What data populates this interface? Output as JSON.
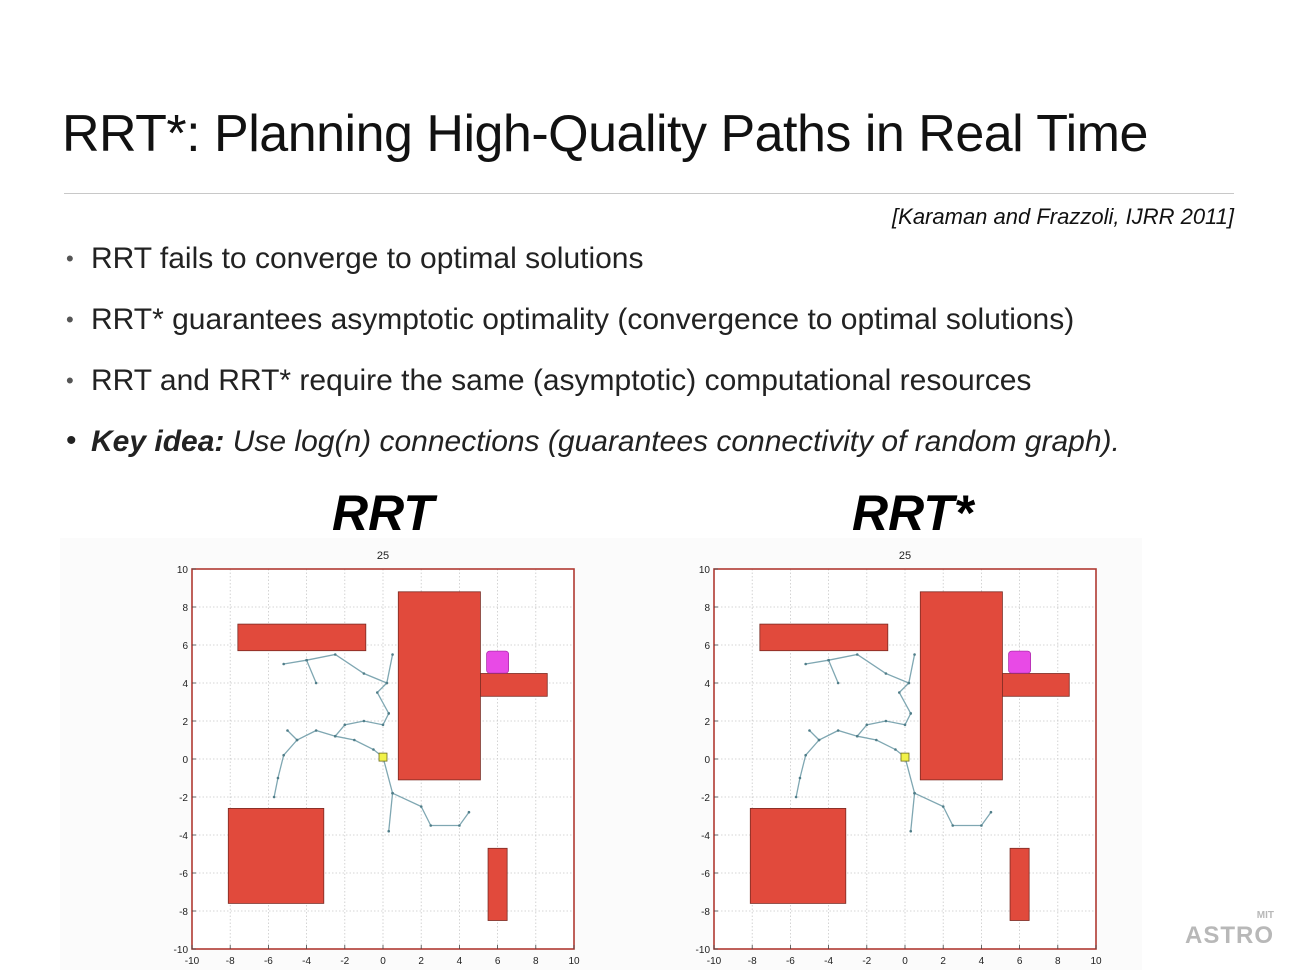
{
  "title": "RRT*: Planning High-Quality Paths in Real Time",
  "citation": "[Karaman and Frazzoli, IJRR 2011]",
  "bullets": [
    {
      "text": "RRT fails to converge to optimal solutions"
    },
    {
      "text": "RRT* guarantees asymptotic optimality (convergence to optimal solutions)"
    },
    {
      "text": "RRT and RRT* require the same (asymptotic) computational resources"
    },
    {
      "label": "Key idea:",
      "text": "Use log(n) connections (guarantees connectivity of random graph)."
    }
  ],
  "bullet_marker": "•",
  "plots": {
    "left_heading": "RRT",
    "right_heading": "RRT*"
  },
  "logo": {
    "small": "MIT",
    "big": "ASTRO"
  },
  "chart_data": [
    {
      "type": "scatter",
      "title": "25",
      "xlabel": "",
      "ylabel": "",
      "xlim": [
        -10,
        10
      ],
      "ylim": [
        -10,
        10
      ],
      "xticks": [
        -10,
        -8,
        -6,
        -4,
        -2,
        0,
        2,
        4,
        6,
        8,
        10
      ],
      "yticks": [
        -10,
        -8,
        -6,
        -4,
        -2,
        0,
        2,
        4,
        6,
        8,
        10
      ],
      "grid": true,
      "colors": {
        "obstacle": "#e14a3c",
        "goal": "#e84ae6",
        "start": "#f2f249",
        "tree": "#7fa7b2",
        "axes": "#b03a32"
      },
      "obstacles": [
        {
          "x0": -7.6,
          "x1": -0.9,
          "y0": 5.7,
          "y1": 7.1
        },
        {
          "x0": 0.8,
          "x1": 5.1,
          "y0": -1.1,
          "y1": 8.8
        },
        {
          "x0": 5.1,
          "x1": 8.6,
          "y0": 3.3,
          "y1": 4.5
        },
        {
          "x0": -8.1,
          "x1": -3.1,
          "y0": -7.6,
          "y1": -2.6
        },
        {
          "x0": 5.5,
          "x1": 6.5,
          "y0": -8.5,
          "y1": -4.7
        }
      ],
      "goal": {
        "x": 6.0,
        "y": 5.1
      },
      "start": {
        "x": 0.0,
        "y": 0.1
      },
      "tree_paths": [
        [
          [
            0.0,
            0.1
          ],
          [
            -0.5,
            0.5
          ],
          [
            -1.5,
            1.0
          ],
          [
            -2.5,
            1.2
          ],
          [
            -3.5,
            1.5
          ],
          [
            -4.5,
            1.0
          ],
          [
            -5.2,
            0.2
          ],
          [
            -5.5,
            -1.0
          ],
          [
            -5.7,
            -2.0
          ]
        ],
        [
          [
            -4.5,
            1.0
          ],
          [
            -5.0,
            1.5
          ]
        ],
        [
          [
            -2.5,
            1.2
          ],
          [
            -2.0,
            1.8
          ],
          [
            -1.0,
            2.0
          ],
          [
            0.0,
            1.8
          ],
          [
            0.3,
            2.4
          ]
        ],
        [
          [
            0.3,
            2.4
          ],
          [
            -0.3,
            3.5
          ],
          [
            0.2,
            4.0
          ],
          [
            0.5,
            5.5
          ]
        ],
        [
          [
            0.2,
            4.0
          ],
          [
            -1.0,
            4.5
          ],
          [
            -2.5,
            5.5
          ],
          [
            -4.0,
            5.2
          ],
          [
            -5.2,
            5.0
          ]
        ],
        [
          [
            -4.0,
            5.2
          ],
          [
            -3.5,
            4.0
          ]
        ],
        [
          [
            0.0,
            0.1
          ],
          [
            0.5,
            -1.8
          ],
          [
            2.0,
            -2.5
          ],
          [
            2.5,
            -3.5
          ],
          [
            4.0,
            -3.5
          ],
          [
            4.5,
            -2.8
          ]
        ],
        [
          [
            0.5,
            -1.8
          ],
          [
            0.3,
            -3.8
          ]
        ]
      ]
    },
    {
      "type": "scatter",
      "title": "25",
      "xlabel": "",
      "ylabel": "",
      "xlim": [
        -10,
        10
      ],
      "ylim": [
        -10,
        10
      ],
      "xticks": [
        -10,
        -8,
        -6,
        -4,
        -2,
        0,
        2,
        4,
        6,
        8,
        10
      ],
      "yticks": [
        -10,
        -8,
        -6,
        -4,
        -2,
        0,
        2,
        4,
        6,
        8,
        10
      ],
      "grid": true,
      "colors": {
        "obstacle": "#e14a3c",
        "goal": "#e84ae6",
        "start": "#f2f249",
        "tree": "#7fa7b2",
        "axes": "#b03a32"
      },
      "obstacles": [
        {
          "x0": -7.6,
          "x1": -0.9,
          "y0": 5.7,
          "y1": 7.1
        },
        {
          "x0": 0.8,
          "x1": 5.1,
          "y0": -1.1,
          "y1": 8.8
        },
        {
          "x0": 5.1,
          "x1": 8.6,
          "y0": 3.3,
          "y1": 4.5
        },
        {
          "x0": -8.1,
          "x1": -3.1,
          "y0": -7.6,
          "y1": -2.6
        },
        {
          "x0": 5.5,
          "x1": 6.5,
          "y0": -8.5,
          "y1": -4.7
        }
      ],
      "goal": {
        "x": 6.0,
        "y": 5.1
      },
      "start": {
        "x": 0.0,
        "y": 0.1
      },
      "tree_paths": [
        [
          [
            0.0,
            0.1
          ],
          [
            -0.5,
            0.5
          ],
          [
            -1.5,
            1.0
          ],
          [
            -2.5,
            1.2
          ],
          [
            -3.5,
            1.5
          ],
          [
            -4.5,
            1.0
          ],
          [
            -5.2,
            0.2
          ],
          [
            -5.5,
            -1.0
          ],
          [
            -5.7,
            -2.0
          ]
        ],
        [
          [
            -4.5,
            1.0
          ],
          [
            -5.0,
            1.5
          ]
        ],
        [
          [
            -2.5,
            1.2
          ],
          [
            -2.0,
            1.8
          ],
          [
            -1.0,
            2.0
          ],
          [
            0.0,
            1.8
          ],
          [
            0.3,
            2.4
          ]
        ],
        [
          [
            0.3,
            2.4
          ],
          [
            -0.3,
            3.5
          ],
          [
            0.2,
            4.0
          ],
          [
            0.5,
            5.5
          ]
        ],
        [
          [
            0.2,
            4.0
          ],
          [
            -1.0,
            4.5
          ],
          [
            -2.5,
            5.5
          ],
          [
            -4.0,
            5.2
          ],
          [
            -5.2,
            5.0
          ]
        ],
        [
          [
            -4.0,
            5.2
          ],
          [
            -3.5,
            4.0
          ]
        ],
        [
          [
            0.0,
            0.1
          ],
          [
            0.5,
            -1.8
          ],
          [
            2.0,
            -2.5
          ],
          [
            2.5,
            -3.5
          ],
          [
            4.0,
            -3.5
          ],
          [
            4.5,
            -2.8
          ]
        ],
        [
          [
            0.5,
            -1.8
          ],
          [
            0.3,
            -3.8
          ]
        ]
      ]
    }
  ]
}
